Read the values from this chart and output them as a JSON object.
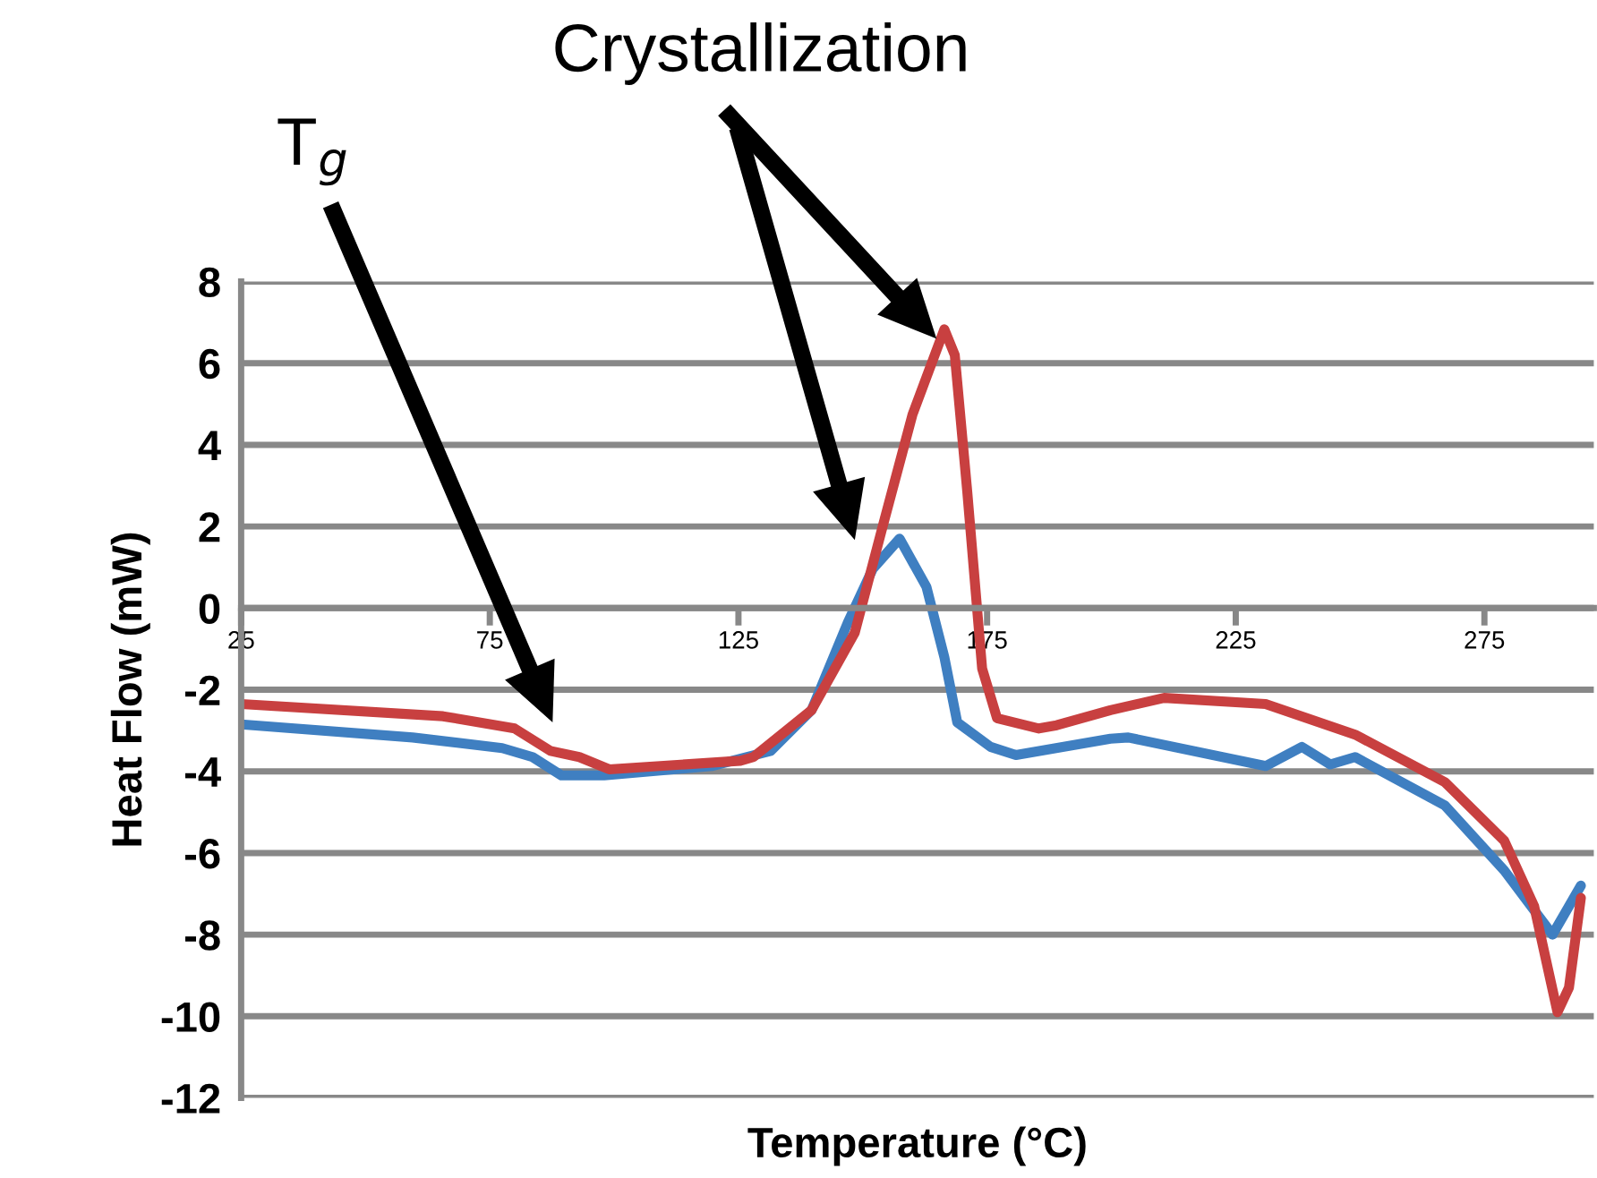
{
  "chart_data": {
    "type": "line",
    "xlabel": "Temperature (°C)",
    "ylabel": "Heat Flow (mW)",
    "xlim": [
      25,
      297
    ],
    "xticks": [
      25,
      75,
      125,
      175,
      225,
      275
    ],
    "ylim": [
      -12,
      8
    ],
    "yticks": [
      -12,
      -10,
      -8,
      -6,
      -4,
      -2,
      0,
      2,
      4,
      6,
      8
    ],
    "grid": "y",
    "marker": "none",
    "line_style": "solid",
    "series": [
      {
        "color": "#3f7fc1",
        "x": [
          25,
          59.5,
          77.5,
          83.6,
          89.4,
          98,
          119.6,
          131.5,
          139.7,
          147,
          152,
          157.4,
          162.8,
          166.4,
          169,
          175.7,
          180.8,
          199.8,
          203.4,
          231,
          238.3,
          244,
          249,
          267,
          279,
          288.7,
          294.4
        ],
        "values": [
          -2.85,
          -3.17,
          -3.43,
          -3.65,
          -4.1,
          -4.1,
          -3.87,
          -3.5,
          -2.5,
          -0.35,
          0.96,
          1.7,
          0.52,
          -1.2,
          -2.8,
          -3.4,
          -3.6,
          -3.2,
          -3.17,
          -3.87,
          -3.4,
          -3.83,
          -3.65,
          -4.83,
          -6.43,
          -8.0,
          -6.8
        ]
      },
      {
        "color": "#c84040",
        "x": [
          25,
          65.6,
          80,
          87.2,
          93,
          99,
          125.4,
          128,
          139.7,
          148.4,
          154,
          160,
          166.4,
          168.5,
          171,
          174,
          177,
          185.4,
          189,
          199.8,
          210.6,
          231,
          249,
          267,
          279,
          285,
          289.7,
          292,
          294.4
        ],
        "values": [
          -2.35,
          -2.65,
          -2.95,
          -3.5,
          -3.65,
          -3.95,
          -3.74,
          -3.65,
          -2.5,
          -0.6,
          2.0,
          4.74,
          6.83,
          6.2,
          2.87,
          -1.48,
          -2.7,
          -2.95,
          -2.87,
          -2.5,
          -2.2,
          -2.35,
          -3.1,
          -4.26,
          -5.7,
          -7.3,
          -9.9,
          -9.3,
          -7.1
        ]
      }
    ],
    "annotations": [
      "Crystallization",
      "T$_{g}$"
    ]
  }
}
